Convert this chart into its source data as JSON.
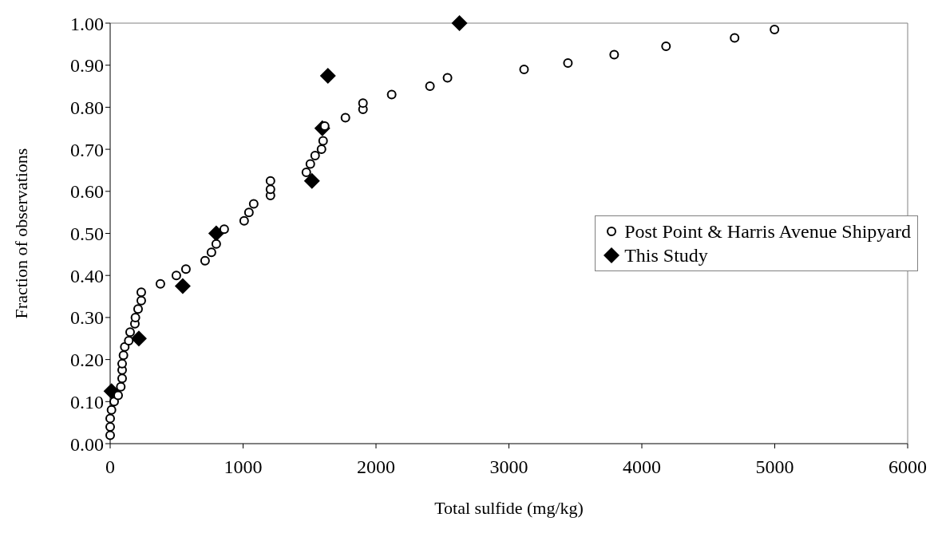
{
  "chart_data": {
    "type": "scatter",
    "xlabel": "Total sulfide (mg/kg)",
    "ylabel": "Fraction of observations",
    "xlim": [
      0,
      6000
    ],
    "xticks": [
      0,
      1000,
      2000,
      3000,
      4000,
      5000,
      6000
    ],
    "ylim": [
      0,
      1
    ],
    "yticks": [
      {
        "value": 0,
        "label": "0.00"
      },
      {
        "value": 0.1,
        "label": "0.10"
      },
      {
        "value": 0.2,
        "label": "0.20"
      },
      {
        "value": 0.3,
        "label": "0.30"
      },
      {
        "value": 0.4,
        "label": "0.40"
      },
      {
        "value": 0.5,
        "label": "0.50"
      },
      {
        "value": 0.6,
        "label": "0.60"
      },
      {
        "value": 0.7,
        "label": "0.70"
      },
      {
        "value": 0.8,
        "label": "0.80"
      },
      {
        "value": 0.9,
        "label": "0.90"
      },
      {
        "value": 1,
        "label": "1.00"
      }
    ],
    "grid": false,
    "legend": "right",
    "series": [
      {
        "name": "Post Point & Harris Avenue Shipyard",
        "color": "#000000",
        "marker": "circle",
        "x": [
          0,
          0,
          0,
          10,
          30,
          60,
          80,
          90,
          90,
          90,
          100,
          110,
          140,
          150,
          186,
          190,
          210,
          234,
          234,
          378,
          498,
          570,
          714,
          762,
          798,
          858,
          1008,
          1044,
          1080,
          1206,
          1206,
          1206,
          1476,
          1506,
          1542,
          1590,
          1602,
          1614,
          1770,
          1902,
          1902,
          2118,
          2406,
          2538,
          3114,
          3444,
          3792,
          4182,
          4698,
          4998
        ],
        "values": [
          0.02,
          0.04,
          0.06,
          0.08,
          0.1,
          0.115,
          0.135,
          0.155,
          0.175,
          0.19,
          0.21,
          0.23,
          0.245,
          0.265,
          0.285,
          0.3,
          0.32,
          0.34,
          0.36,
          0.38,
          0.4,
          0.415,
          0.435,
          0.455,
          0.475,
          0.51,
          0.53,
          0.55,
          0.57,
          0.59,
          0.605,
          0.625,
          0.645,
          0.665,
          0.685,
          0.7,
          0.72,
          0.755,
          0.775,
          0.795,
          0.81,
          0.83,
          0.85,
          0.87,
          0.89,
          0.905,
          0.925,
          0.945,
          0.965,
          0.985
        ]
      },
      {
        "name": "This Study",
        "color": "#000000",
        "marker": "diamond",
        "x": [
          10,
          216,
          546,
          798,
          1518,
          1596,
          1638,
          2628
        ],
        "values": [
          0.125,
          0.25,
          0.375,
          0.5,
          0.625,
          0.75,
          0.875,
          1.0
        ]
      }
    ]
  }
}
